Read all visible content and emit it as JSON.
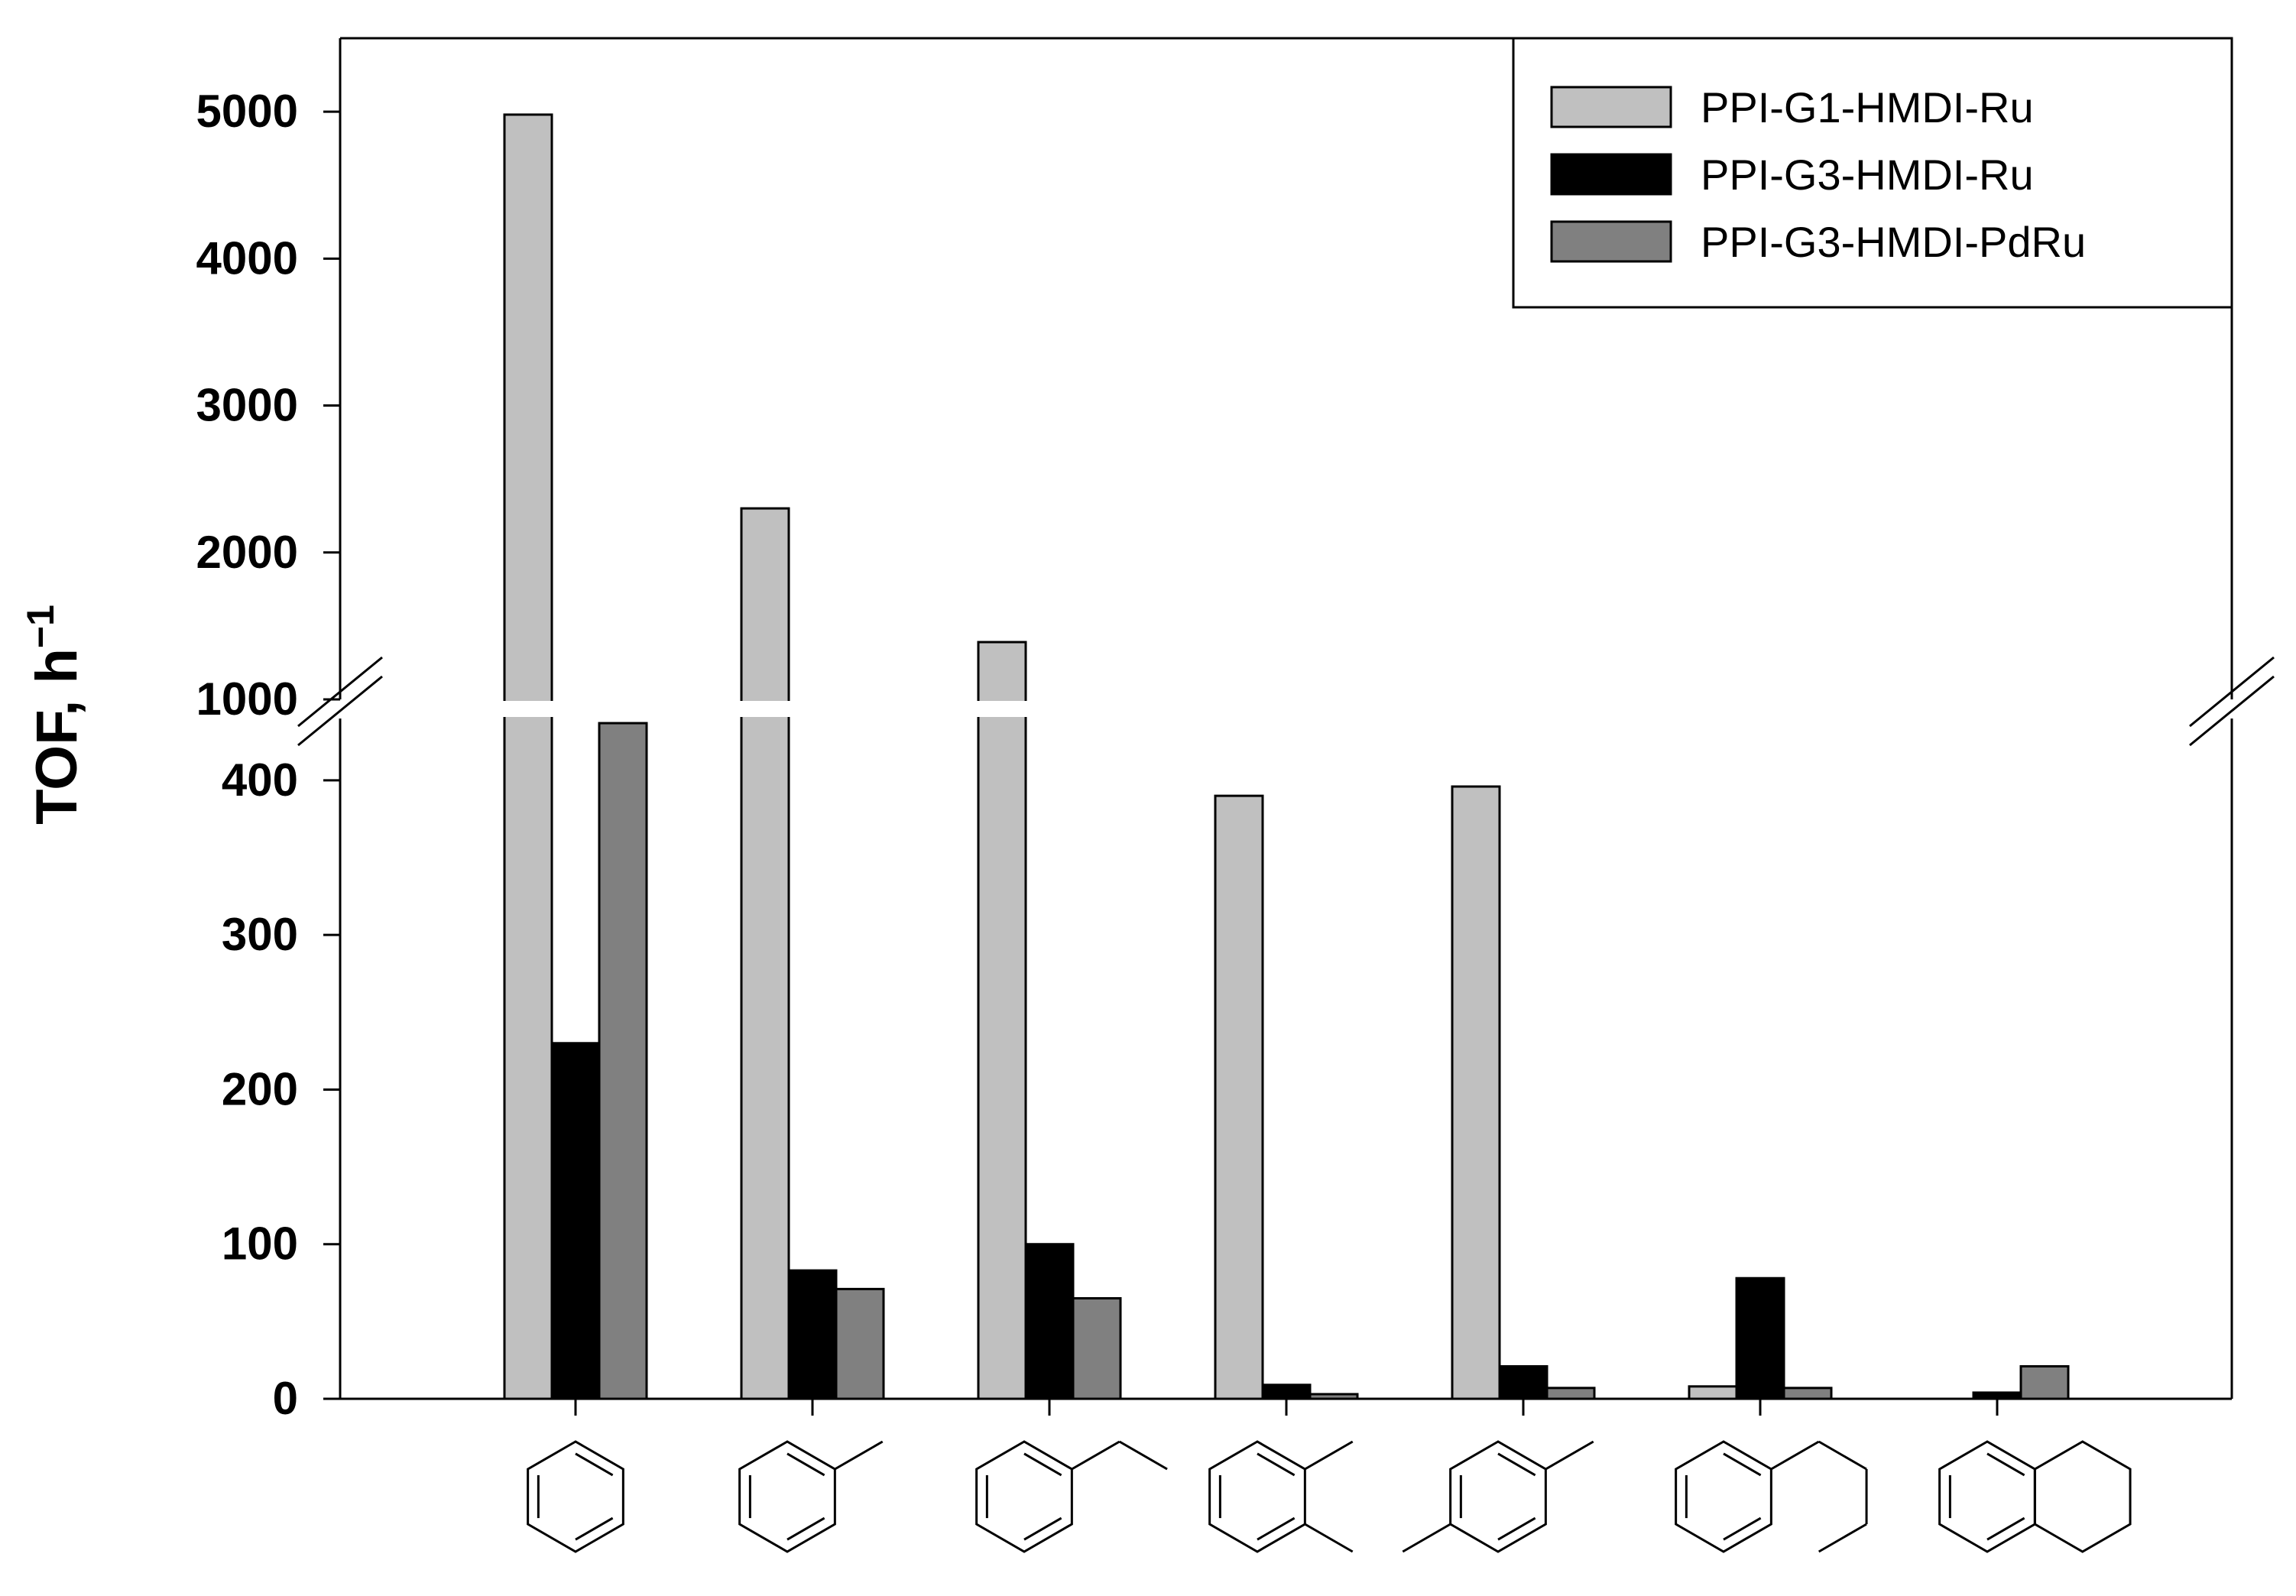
{
  "chart_data": {
    "type": "bar",
    "ylabel": "TOF, h",
    "ylabel_superscript": "−1",
    "y_axis_break": {
      "lower_segment": [
        0,
        440
      ],
      "upper_segment": [
        1000,
        5500
      ]
    },
    "lower_ticks": [
      "0",
      "100",
      "200",
      "300",
      "400"
    ],
    "upper_ticks": [
      "1000",
      "2000",
      "3000",
      "4000",
      "5000"
    ],
    "categories": [
      "benzene",
      "toluene",
      "ethylbenzene",
      "o-xylene",
      "p-xylene",
      "n-propylbenzene",
      "tetralin"
    ],
    "series": [
      {
        "name": "PPI-G1-HMDI-Ru",
        "color": "#c0c0c0",
        "values": [
          4980,
          2300,
          1390,
          390,
          396,
          8,
          0
        ]
      },
      {
        "name": "PPI-G3-HMDI-Ru",
        "color": "#000000",
        "values": [
          230,
          83,
          100,
          9,
          21,
          78,
          4
        ]
      },
      {
        "name": "PPI-G3-HMDI-PdRu",
        "color": "#808080",
        "values": [
          437,
          71,
          65,
          3,
          7,
          7,
          21
        ]
      }
    ],
    "legend_position": "top-right",
    "x_tick_labels": "chemical structure drawings",
    "grid": false
  }
}
